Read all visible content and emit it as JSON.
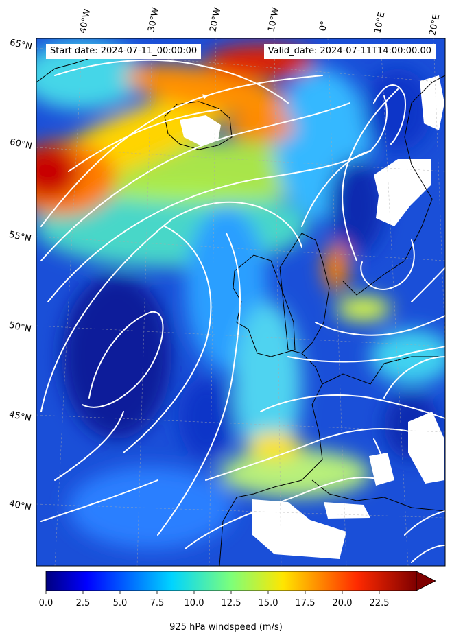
{
  "header": {
    "start_date": "Start date: 2024-07-11_00:00:00",
    "valid_date": "Valid_date: 2024-07-11T14:00:00.00"
  },
  "lat_labels": [
    "65°N",
    "60°N",
    "55°N",
    "50°N",
    "45°N",
    "40°N"
  ],
  "lon_labels": [
    "40°W",
    "30°W",
    "20°W",
    "10°W",
    "0°",
    "10°E",
    "20°E"
  ],
  "colorbar": {
    "title": "925 hPa windspeed (m/s)",
    "min": 0.0,
    "max": 25.0,
    "extend": "max",
    "colormap": "jet",
    "tick_values": [
      0.0,
      2.5,
      5.0,
      7.5,
      10.0,
      12.5,
      15.0,
      17.5,
      20.0,
      22.5
    ],
    "ticks": [
      "0.0",
      "2.5",
      "5.0",
      "7.5",
      "10.0",
      "12.5",
      "15.0",
      "17.5",
      "20.0",
      "22.5"
    ]
  },
  "colors": {
    "background_field": "#1a4fd8",
    "streamline": "#ffffff",
    "coastline": "#000000",
    "missing_data": "#ffffff"
  }
}
